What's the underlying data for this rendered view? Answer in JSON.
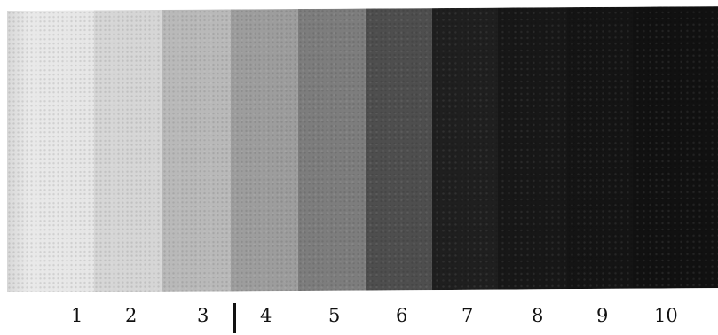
{
  "swatches": [
    {
      "label": "1",
      "color": "#e4e4e4"
    },
    {
      "label": "2",
      "color": "#d6d6d6"
    },
    {
      "label": "3",
      "color": "#b9b9b9"
    },
    {
      "label": "4",
      "color": "#9d9d9d"
    },
    {
      "label": "5",
      "color": "#7d7d7d"
    },
    {
      "label": "6",
      "color": "#4e4e4e"
    },
    {
      "label": "7",
      "color": "#1f1f1f"
    },
    {
      "label": "8",
      "color": "#171717"
    },
    {
      "label": "9",
      "color": "#141414"
    },
    {
      "label": "10",
      "color": "#111111"
    }
  ]
}
